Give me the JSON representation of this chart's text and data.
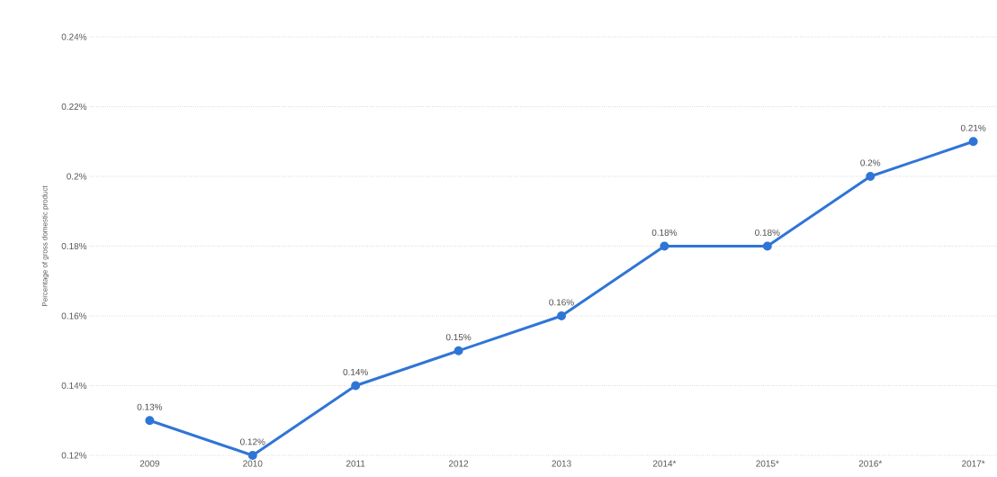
{
  "chart_data": {
    "type": "line",
    "ylabel": "Percentage of gross domestic product",
    "categories": [
      "2009",
      "2010",
      "2011",
      "2012",
      "2013",
      "2014*",
      "2015*",
      "2016*",
      "2017*"
    ],
    "series": [
      {
        "color": "#2f75d6",
        "values": [
          0.13,
          0.12,
          0.14,
          0.15,
          0.16,
          0.18,
          0.18,
          0.2,
          0.21
        ],
        "value_labels": [
          "0.13%",
          "0.12%",
          "0.14%",
          "0.15%",
          "0.16%",
          "0.18%",
          "0.18%",
          "0.2%",
          "0.21%"
        ]
      }
    ],
    "ylim": [
      0.12,
      0.24
    ],
    "yticks": [
      {
        "value": 0.12,
        "label": "0.12%"
      },
      {
        "value": 0.14,
        "label": "0.14%"
      },
      {
        "value": 0.16,
        "label": "0.16%"
      },
      {
        "value": 0.18,
        "label": "0.18%"
      },
      {
        "value": 0.2,
        "label": "0.2%"
      },
      {
        "value": 0.22,
        "label": "0.22%"
      },
      {
        "value": 0.24,
        "label": "0.24%"
      }
    ],
    "grid": "y",
    "marker": "circle",
    "line_style": "solid"
  }
}
